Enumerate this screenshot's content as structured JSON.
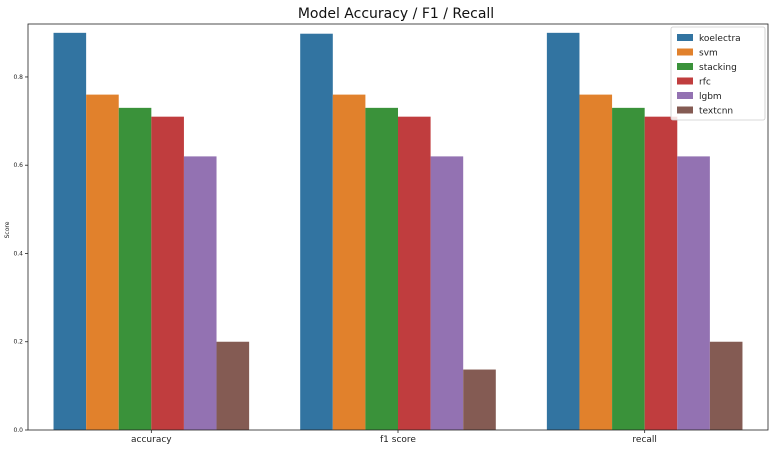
{
  "chart_data": {
    "type": "bar",
    "title": "Model Accuracy / F1 / Recall",
    "xlabel": "",
    "ylabel": "Score",
    "ylim": [
      0,
      0.92
    ],
    "yticks": [
      "0.0",
      "0.2",
      "0.4",
      "0.6",
      "0.8"
    ],
    "categories": [
      "accuracy",
      "f1 score",
      "recall"
    ],
    "series": [
      {
        "name": "koelectra",
        "color": "#3274a1",
        "values": [
          0.9,
          0.898,
          0.9
        ]
      },
      {
        "name": "svm",
        "color": "#e1812c",
        "values": [
          0.76,
          0.76,
          0.76
        ]
      },
      {
        "name": "stacking",
        "color": "#3a923a",
        "values": [
          0.73,
          0.73,
          0.73
        ]
      },
      {
        "name": "rfc",
        "color": "#c03d3e",
        "values": [
          0.71,
          0.71,
          0.71
        ]
      },
      {
        "name": "lgbm",
        "color": "#9372b2",
        "values": [
          0.62,
          0.62,
          0.62
        ]
      },
      {
        "name": "textcnn",
        "color": "#845b53",
        "values": [
          0.2,
          0.137,
          0.2
        ]
      }
    ],
    "grid": false,
    "legend_position": "top-right"
  }
}
